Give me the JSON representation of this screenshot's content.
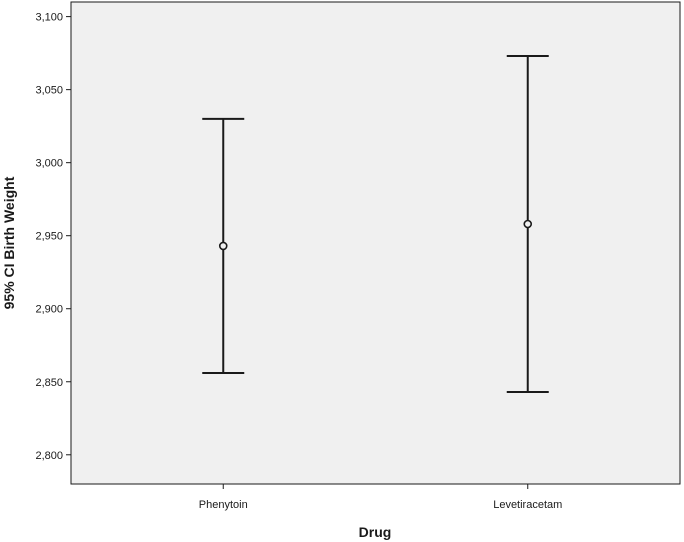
{
  "chart_data": {
    "type": "errorbar",
    "title": "",
    "xlabel": "Drug",
    "ylabel": "95% CI Birth Weight",
    "categories": [
      "Phenytoin",
      "Levetiracetam"
    ],
    "series": [
      {
        "values": [
          2943,
          2958
        ],
        "lower": [
          2856,
          2843
        ],
        "upper": [
          3030,
          3073
        ]
      }
    ],
    "ylim": [
      2780,
      3110
    ],
    "yticks": [
      2800,
      2850,
      2900,
      2950,
      3000,
      3050,
      3100
    ],
    "ytick_labels": [
      "2,800",
      "2,850",
      "2,900",
      "2,950",
      "3,000",
      "3,050",
      "3,100"
    ],
    "grid": false,
    "legend": "none",
    "colors": {
      "plot_background": "#f0f0f0",
      "marks": "#1a1a1a"
    }
  }
}
